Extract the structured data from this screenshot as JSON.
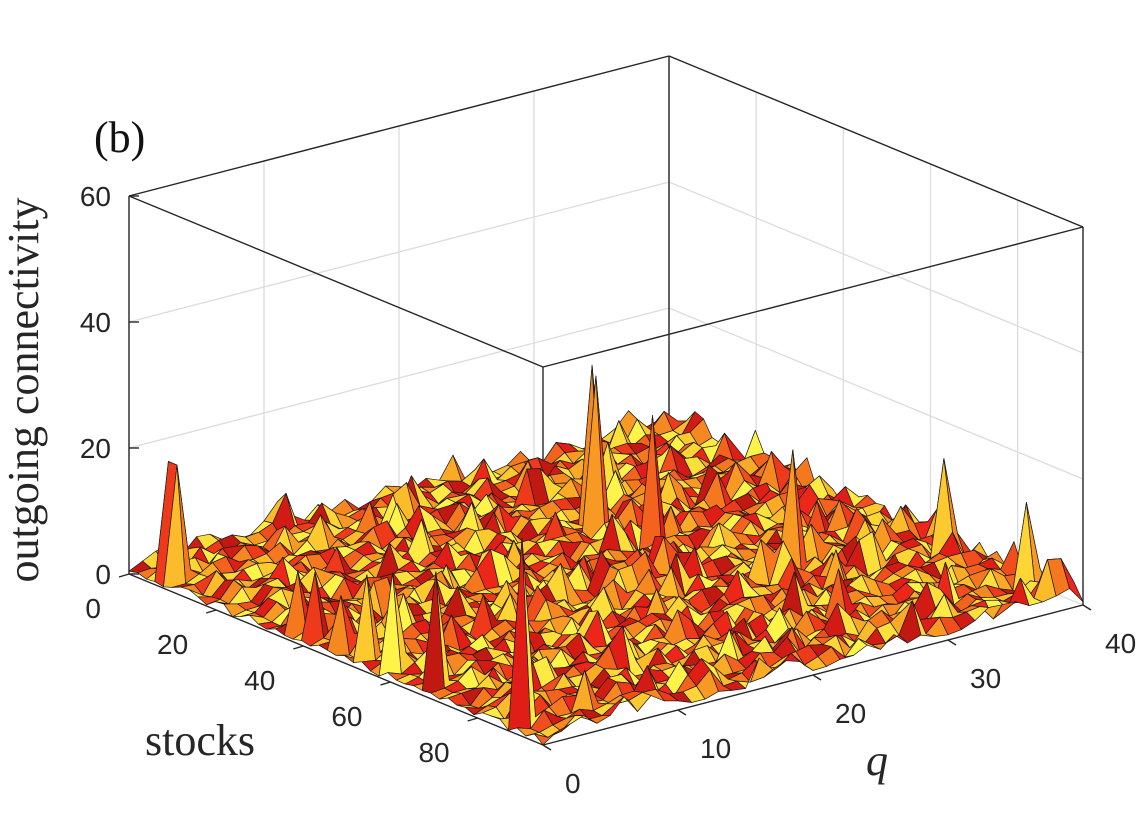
{
  "chart_data": {
    "type": "surface3d",
    "panel_label": "(b)",
    "zlabel": "outgoing connectivity",
    "xlabel": "stocks",
    "ylabel": "q",
    "x_ticks": [
      "0",
      "20",
      "40",
      "60",
      "80"
    ],
    "y_ticks": [
      "0",
      "10",
      "20",
      "30",
      "40"
    ],
    "z_ticks": [
      "0",
      "20",
      "40",
      "60"
    ],
    "xlim": [
      0,
      95
    ],
    "ylim": [
      0,
      40
    ],
    "zlim": [
      0,
      60
    ],
    "colormap": "hot",
    "grid": true,
    "highlighted_peaks": [
      {
        "stocks": 5,
        "q": 1,
        "value": 19
      },
      {
        "stocks": 7,
        "q": 1,
        "value": 19
      },
      {
        "stocks": 35,
        "q": 1,
        "value": 10
      },
      {
        "stocks": 40,
        "q": 1,
        "value": 11
      },
      {
        "stocks": 45,
        "q": 1,
        "value": 9
      },
      {
        "stocks": 52,
        "q": 1,
        "value": 14
      },
      {
        "stocks": 58,
        "q": 1,
        "value": 16
      },
      {
        "stocks": 68,
        "q": 1,
        "value": 19
      },
      {
        "stocks": 88,
        "q": 1,
        "value": 30
      },
      {
        "stocks": 25,
        "q": 26,
        "value": 26
      },
      {
        "stocks": 30,
        "q": 25,
        "value": 26
      },
      {
        "stocks": 40,
        "q": 26,
        "value": 22
      },
      {
        "stocks": 60,
        "q": 30,
        "value": 20
      },
      {
        "stocks": 70,
        "q": 38,
        "value": 17
      },
      {
        "stocks": 85,
        "q": 39,
        "value": 14
      }
    ]
  }
}
